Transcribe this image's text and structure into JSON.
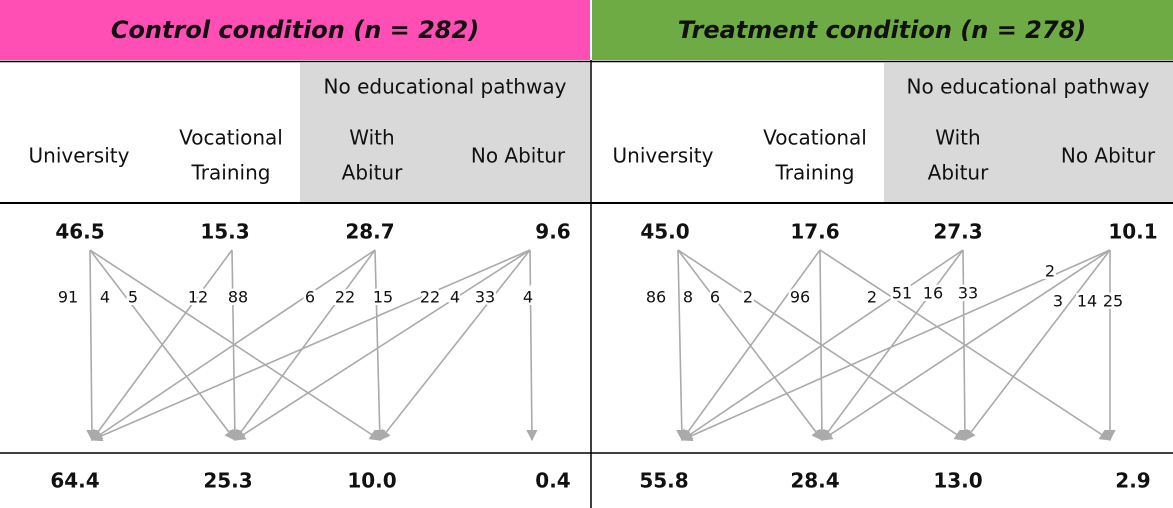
{
  "panels": [
    {
      "title": "Control condition (n = 282)",
      "group_label": "No educational pathway",
      "columns": [
        [
          "University"
        ],
        [
          "Vocational",
          "Training"
        ],
        [
          "With",
          "Abitur"
        ],
        [
          "No Abitur"
        ]
      ],
      "top": [
        "46.5",
        "15.3",
        "28.7",
        "9.6"
      ],
      "bottom": [
        "64.4",
        "25.3",
        "10.0",
        "0.4"
      ],
      "flows": [
        "91",
        "4",
        "5",
        "12",
        "88",
        "6",
        "22",
        "15",
        "22",
        "4",
        "33",
        "4"
      ]
    },
    {
      "title": "Treatment condition (n = 278)",
      "group_label": "No educational pathway",
      "columns": [
        [
          "University"
        ],
        [
          "Vocational",
          "Training"
        ],
        [
          "With",
          "Abitur"
        ],
        [
          "No Abitur"
        ]
      ],
      "top": [
        "45.0",
        "17.6",
        "27.3",
        "10.1"
      ],
      "bottom": [
        "55.8",
        "28.4",
        "13.0",
        "2.9"
      ],
      "flows": [
        "86",
        "8",
        "6",
        "2",
        "96",
        "2",
        "51",
        "16",
        "33",
        "2",
        "3",
        "14",
        "25"
      ]
    }
  ]
}
